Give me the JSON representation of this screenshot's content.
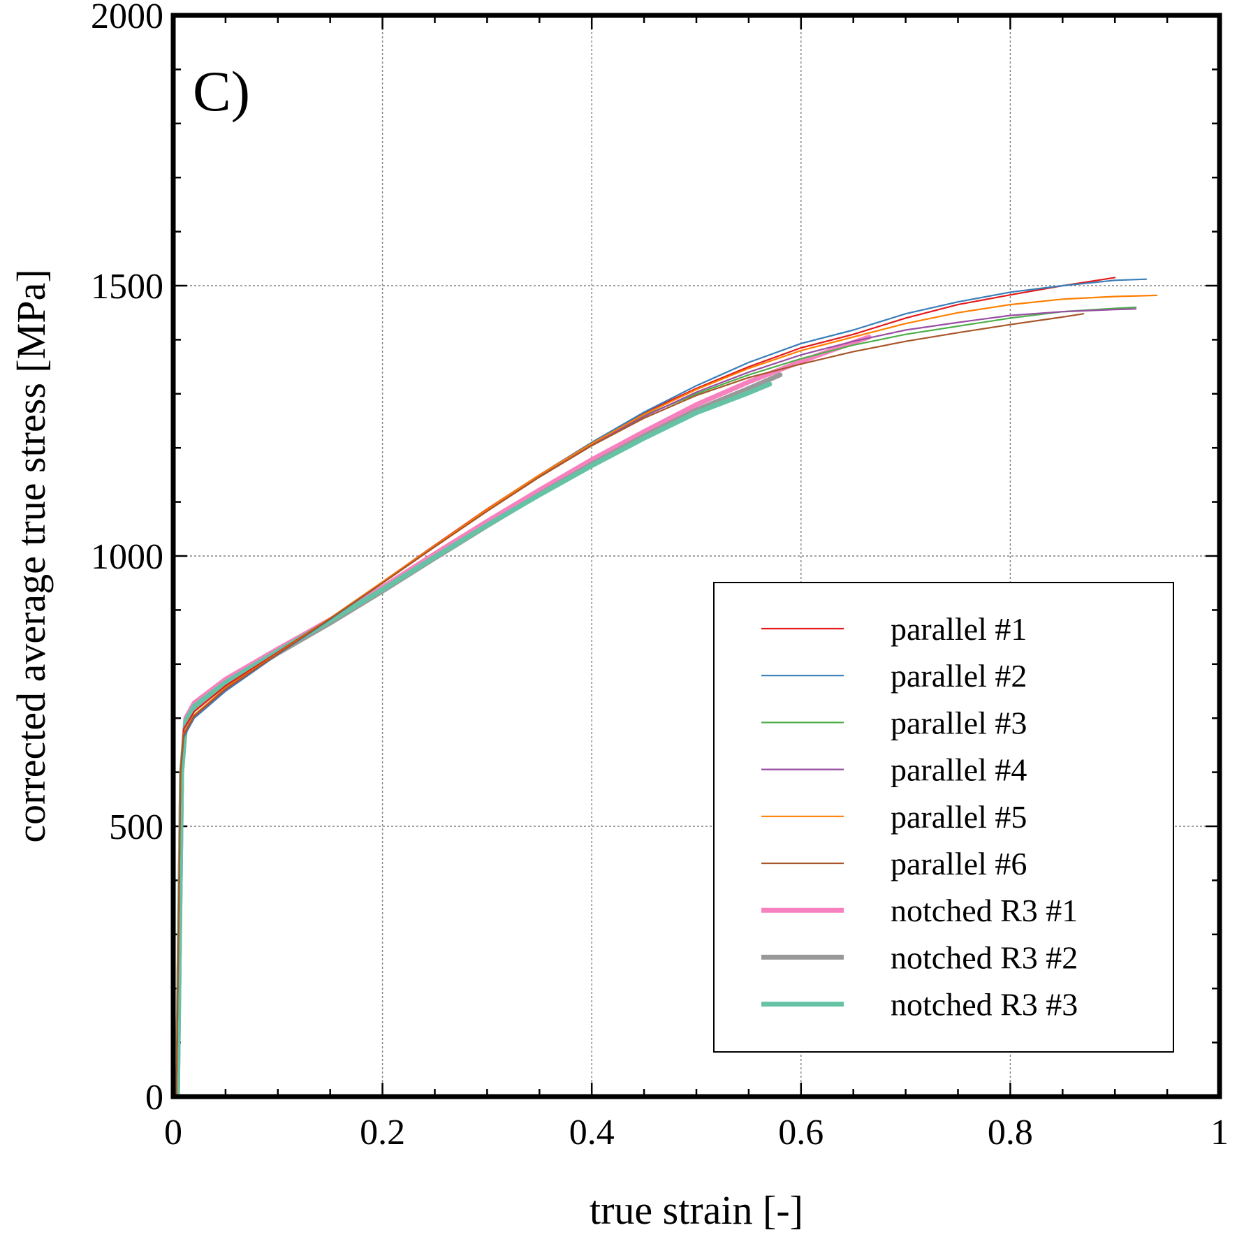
{
  "chart_data": {
    "type": "line",
    "panel_label": "C)",
    "xlabel": "true strain [-]",
    "ylabel": "corrected average true stress [MPa]",
    "xlim": [
      0,
      1
    ],
    "ylim": [
      0,
      2000
    ],
    "x_ticks": [
      0,
      0.2,
      0.4,
      0.6,
      0.8,
      1
    ],
    "x_tick_labels": [
      "0",
      "0.2",
      "0.4",
      "0.6",
      "0.8",
      "1"
    ],
    "y_ticks": [
      0,
      500,
      1000,
      1500,
      2000
    ],
    "y_tick_labels": [
      "0",
      "500",
      "1000",
      "1500",
      "2000"
    ],
    "grid": true,
    "legend_position": "bottom-right",
    "series": [
      {
        "name": "parallel #1",
        "color": "#e41a1c",
        "width": "thin",
        "points": [
          [
            0.003,
            0
          ],
          [
            0.005,
            300
          ],
          [
            0.007,
            600
          ],
          [
            0.01,
            680
          ],
          [
            0.02,
            712
          ],
          [
            0.05,
            760
          ],
          [
            0.1,
            822
          ],
          [
            0.15,
            885
          ],
          [
            0.2,
            952
          ],
          [
            0.25,
            1020
          ],
          [
            0.3,
            1087
          ],
          [
            0.35,
            1150
          ],
          [
            0.4,
            1210
          ],
          [
            0.45,
            1265
          ],
          [
            0.5,
            1310
          ],
          [
            0.55,
            1350
          ],
          [
            0.6,
            1385
          ],
          [
            0.65,
            1410
          ],
          [
            0.7,
            1440
          ],
          [
            0.75,
            1465
          ],
          [
            0.8,
            1483
          ],
          [
            0.85,
            1500
          ],
          [
            0.9,
            1515
          ]
        ]
      },
      {
        "name": "parallel #2",
        "color": "#377eb8",
        "width": "thin",
        "points": [
          [
            0.003,
            0
          ],
          [
            0.005,
            300
          ],
          [
            0.007,
            600
          ],
          [
            0.01,
            665
          ],
          [
            0.02,
            700
          ],
          [
            0.05,
            750
          ],
          [
            0.1,
            818
          ],
          [
            0.15,
            883
          ],
          [
            0.2,
            950
          ],
          [
            0.25,
            1018
          ],
          [
            0.3,
            1085
          ],
          [
            0.35,
            1150
          ],
          [
            0.4,
            1210
          ],
          [
            0.45,
            1266
          ],
          [
            0.5,
            1315
          ],
          [
            0.55,
            1358
          ],
          [
            0.6,
            1393
          ],
          [
            0.65,
            1418
          ],
          [
            0.7,
            1448
          ],
          [
            0.75,
            1470
          ],
          [
            0.8,
            1488
          ],
          [
            0.85,
            1500
          ],
          [
            0.9,
            1510
          ],
          [
            0.93,
            1512
          ]
        ]
      },
      {
        "name": "parallel #3",
        "color": "#4daf4a",
        "width": "thin",
        "points": [
          [
            0.003,
            0
          ],
          [
            0.005,
            300
          ],
          [
            0.007,
            600
          ],
          [
            0.01,
            670
          ],
          [
            0.02,
            705
          ],
          [
            0.05,
            755
          ],
          [
            0.1,
            820
          ],
          [
            0.15,
            884
          ],
          [
            0.2,
            951
          ],
          [
            0.25,
            1018
          ],
          [
            0.3,
            1084
          ],
          [
            0.35,
            1148
          ],
          [
            0.4,
            1208
          ],
          [
            0.45,
            1260
          ],
          [
            0.5,
            1300
          ],
          [
            0.55,
            1335
          ],
          [
            0.6,
            1365
          ],
          [
            0.65,
            1390
          ],
          [
            0.7,
            1410
          ],
          [
            0.75,
            1425
          ],
          [
            0.8,
            1440
          ],
          [
            0.85,
            1452
          ],
          [
            0.9,
            1458
          ],
          [
            0.92,
            1460
          ]
        ]
      },
      {
        "name": "parallel #4",
        "color": "#984ea3",
        "width": "thin",
        "points": [
          [
            0.003,
            0
          ],
          [
            0.005,
            300
          ],
          [
            0.007,
            600
          ],
          [
            0.01,
            668
          ],
          [
            0.02,
            703
          ],
          [
            0.05,
            753
          ],
          [
            0.1,
            819
          ],
          [
            0.15,
            884
          ],
          [
            0.2,
            950
          ],
          [
            0.25,
            1017
          ],
          [
            0.3,
            1083
          ],
          [
            0.35,
            1147
          ],
          [
            0.4,
            1206
          ],
          [
            0.45,
            1258
          ],
          [
            0.5,
            1303
          ],
          [
            0.55,
            1340
          ],
          [
            0.6,
            1372
          ],
          [
            0.65,
            1397
          ],
          [
            0.7,
            1418
          ],
          [
            0.75,
            1432
          ],
          [
            0.8,
            1445
          ],
          [
            0.85,
            1452
          ],
          [
            0.9,
            1456
          ],
          [
            0.92,
            1457
          ]
        ]
      },
      {
        "name": "parallel #5",
        "color": "#ff7f00",
        "width": "thin",
        "points": [
          [
            0.003,
            0
          ],
          [
            0.005,
            300
          ],
          [
            0.007,
            600
          ],
          [
            0.01,
            672
          ],
          [
            0.02,
            706
          ],
          [
            0.05,
            756
          ],
          [
            0.1,
            820
          ],
          [
            0.15,
            885
          ],
          [
            0.2,
            952
          ],
          [
            0.25,
            1019
          ],
          [
            0.3,
            1086
          ],
          [
            0.35,
            1150
          ],
          [
            0.4,
            1208
          ],
          [
            0.45,
            1262
          ],
          [
            0.5,
            1308
          ],
          [
            0.55,
            1347
          ],
          [
            0.6,
            1380
          ],
          [
            0.65,
            1405
          ],
          [
            0.7,
            1430
          ],
          [
            0.75,
            1450
          ],
          [
            0.8,
            1465
          ],
          [
            0.85,
            1475
          ],
          [
            0.9,
            1480
          ],
          [
            0.94,
            1482
          ]
        ]
      },
      {
        "name": "parallel #6",
        "color": "#a65628",
        "width": "thin",
        "points": [
          [
            0.003,
            0
          ],
          [
            0.005,
            300
          ],
          [
            0.007,
            600
          ],
          [
            0.01,
            670
          ],
          [
            0.02,
            704
          ],
          [
            0.05,
            754
          ],
          [
            0.1,
            819
          ],
          [
            0.15,
            884
          ],
          [
            0.2,
            950
          ],
          [
            0.25,
            1017
          ],
          [
            0.3,
            1083
          ],
          [
            0.35,
            1146
          ],
          [
            0.4,
            1204
          ],
          [
            0.45,
            1255
          ],
          [
            0.5,
            1297
          ],
          [
            0.55,
            1330
          ],
          [
            0.6,
            1355
          ],
          [
            0.65,
            1378
          ],
          [
            0.7,
            1397
          ],
          [
            0.75,
            1413
          ],
          [
            0.8,
            1428
          ],
          [
            0.85,
            1442
          ],
          [
            0.87,
            1448
          ]
        ]
      },
      {
        "name": "notched R3 #1",
        "color": "#f781bf",
        "width": "thick",
        "points": [
          [
            0.004,
            0
          ],
          [
            0.006,
            300
          ],
          [
            0.008,
            600
          ],
          [
            0.012,
            700
          ],
          [
            0.02,
            728
          ],
          [
            0.05,
            772
          ],
          [
            0.1,
            828
          ],
          [
            0.15,
            882
          ],
          [
            0.2,
            942
          ],
          [
            0.25,
            1004
          ],
          [
            0.3,
            1064
          ],
          [
            0.35,
            1122
          ],
          [
            0.4,
            1178
          ],
          [
            0.45,
            1230
          ],
          [
            0.5,
            1280
          ],
          [
            0.55,
            1322
          ],
          [
            0.6,
            1360
          ],
          [
            0.65,
            1395
          ],
          [
            0.665,
            1405
          ]
        ]
      },
      {
        "name": "notched R3 #2",
        "color": "#999999",
        "width": "thick",
        "points": [
          [
            0.004,
            0
          ],
          [
            0.006,
            300
          ],
          [
            0.008,
            600
          ],
          [
            0.012,
            690
          ],
          [
            0.02,
            718
          ],
          [
            0.05,
            762
          ],
          [
            0.1,
            820
          ],
          [
            0.15,
            876
          ],
          [
            0.2,
            935
          ],
          [
            0.25,
            996
          ],
          [
            0.3,
            1056
          ],
          [
            0.35,
            1114
          ],
          [
            0.4,
            1170
          ],
          [
            0.45,
            1222
          ],
          [
            0.5,
            1270
          ],
          [
            0.55,
            1310
          ],
          [
            0.58,
            1335
          ]
        ]
      },
      {
        "name": "notched R3 #3",
        "color": "#66c2a5",
        "width": "thick",
        "points": [
          [
            0.004,
            0
          ],
          [
            0.006,
            300
          ],
          [
            0.008,
            600
          ],
          [
            0.012,
            695
          ],
          [
            0.02,
            722
          ],
          [
            0.05,
            766
          ],
          [
            0.1,
            824
          ],
          [
            0.15,
            880
          ],
          [
            0.2,
            938
          ],
          [
            0.25,
            998
          ],
          [
            0.3,
            1057
          ],
          [
            0.35,
            1113
          ],
          [
            0.4,
            1167
          ],
          [
            0.45,
            1218
          ],
          [
            0.5,
            1265
          ],
          [
            0.55,
            1302
          ],
          [
            0.57,
            1318
          ]
        ]
      }
    ]
  }
}
